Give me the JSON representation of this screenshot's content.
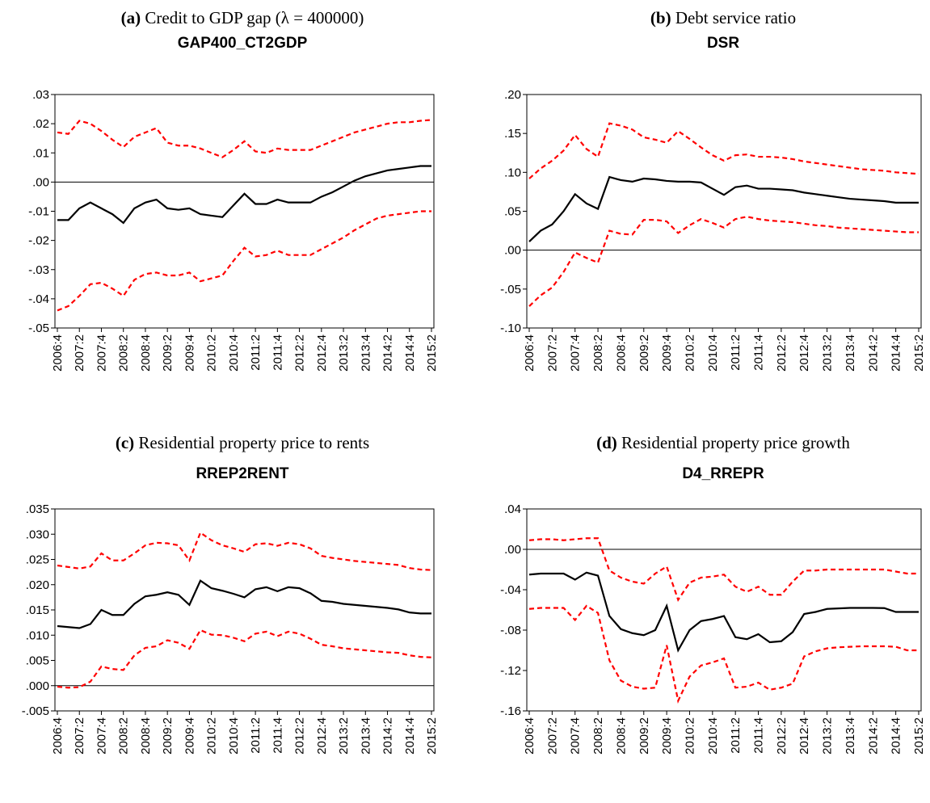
{
  "chart_data": [
    {
      "type": "line",
      "label": "(a)",
      "caption": "Credit to GDP gap (λ = 400000)",
      "title": "GAP400_CT2GDP",
      "categories": [
        "2006:4",
        null,
        "2007:2",
        null,
        "2007:4",
        null,
        "2008:2",
        null,
        "2008:4",
        null,
        "2009:2",
        null,
        "2009:4",
        null,
        "2010:2",
        null,
        "2010:4",
        null,
        "2011:2",
        null,
        "2011:4",
        null,
        "2012:2",
        null,
        "2012:4",
        null,
        "2013:2",
        null,
        "2013:4",
        null,
        "2014:2",
        null,
        "2014:4",
        null,
        "2015:2"
      ],
      "series": [
        {
          "color": "#000000",
          "dashed": false,
          "values": [
            -0.013,
            -0.013,
            -0.009,
            -0.007,
            -0.009,
            -0.011,
            -0.014,
            -0.009,
            -0.007,
            -0.006,
            -0.009,
            -0.0095,
            -0.009,
            -0.011,
            -0.0115,
            -0.012,
            -0.008,
            -0.004,
            -0.0075,
            -0.0075,
            -0.006,
            -0.007,
            -0.007,
            -0.007,
            -0.005,
            -0.0035,
            -0.0015,
            0.0005,
            0.002,
            0.003,
            0.004,
            0.0045,
            0.005,
            0.0055,
            0.0055
          ]
        },
        {
          "color": "#ff0000",
          "dashed": true,
          "values": [
            0.017,
            0.0165,
            0.021,
            0.02,
            0.0175,
            0.0145,
            0.012,
            0.0155,
            0.017,
            0.0185,
            0.0135,
            0.0125,
            0.0125,
            0.0115,
            0.01,
            0.0085,
            0.011,
            0.014,
            0.0105,
            0.01,
            0.0115,
            0.011,
            0.011,
            0.011,
            0.0125,
            0.014,
            0.0155,
            0.017,
            0.018,
            0.019,
            0.02,
            0.0205,
            0.0205,
            0.021,
            0.0213
          ]
        },
        {
          "color": "#ff0000",
          "dashed": true,
          "values": [
            -0.044,
            -0.0425,
            -0.039,
            -0.035,
            -0.0345,
            -0.0365,
            -0.039,
            -0.0335,
            -0.0315,
            -0.031,
            -0.032,
            -0.032,
            -0.031,
            -0.034,
            -0.033,
            -0.032,
            -0.027,
            -0.0225,
            -0.0255,
            -0.025,
            -0.0235,
            -0.025,
            -0.025,
            -0.025,
            -0.023,
            -0.021,
            -0.019,
            -0.0165,
            -0.0145,
            -0.0125,
            -0.0115,
            -0.011,
            -0.0105,
            -0.01,
            -0.01
          ]
        }
      ],
      "ylim": [
        -0.05,
        0.03
      ],
      "yticks": [
        {
          "value": -0.05,
          "label": "-.05"
        },
        {
          "value": -0.04,
          "label": "-.04"
        },
        {
          "value": -0.03,
          "label": "-.03"
        },
        {
          "value": -0.02,
          "label": "-.02"
        },
        {
          "value": -0.01,
          "label": "-.01"
        },
        {
          "value": 0,
          "label": ".00"
        },
        {
          "value": 0.01,
          "label": ".01"
        },
        {
          "value": 0.02,
          "label": ".02"
        },
        {
          "value": 0.03,
          "label": ".03"
        }
      ],
      "zero_line": true
    },
    {
      "type": "line",
      "label": "(b)",
      "caption": "Debt service ratio",
      "title": "DSR",
      "categories": [
        "2006:4",
        null,
        "2007:2",
        null,
        "2007:4",
        null,
        "2008:2",
        null,
        "2008:4",
        null,
        "2009:2",
        null,
        "2009:4",
        null,
        "2010:2",
        null,
        "2010:4",
        null,
        "2011:2",
        null,
        "2011:4",
        null,
        "2012:2",
        null,
        "2012:4",
        null,
        "2013:2",
        null,
        "2013:4",
        null,
        "2014:2",
        null,
        "2014:4",
        null,
        "2015:2"
      ],
      "series": [
        {
          "color": "#000000",
          "dashed": false,
          "values": [
            0.011,
            0.025,
            0.033,
            0.05,
            0.072,
            0.06,
            0.053,
            0.094,
            0.09,
            0.088,
            0.092,
            0.091,
            0.089,
            0.088,
            0.088,
            0.087,
            0.079,
            0.071,
            0.081,
            0.083,
            0.079,
            0.079,
            0.078,
            0.077,
            0.074,
            0.072,
            0.07,
            0.068,
            0.066,
            0.065,
            0.064,
            0.063,
            0.061,
            0.061,
            0.061
          ]
        },
        {
          "color": "#ff0000",
          "dashed": true,
          "values": [
            0.092,
            0.105,
            0.115,
            0.128,
            0.148,
            0.13,
            0.12,
            0.163,
            0.16,
            0.155,
            0.145,
            0.142,
            0.138,
            0.153,
            0.143,
            0.132,
            0.122,
            0.115,
            0.122,
            0.123,
            0.12,
            0.12,
            0.119,
            0.117,
            0.114,
            0.112,
            0.11,
            0.108,
            0.106,
            0.104,
            0.103,
            0.102,
            0.1,
            0.099,
            0.098
          ]
        },
        {
          "color": "#ff0000",
          "dashed": true,
          "values": [
            -0.072,
            -0.058,
            -0.048,
            -0.028,
            -0.003,
            -0.01,
            -0.016,
            0.025,
            0.021,
            0.02,
            0.039,
            0.039,
            0.037,
            0.022,
            0.032,
            0.04,
            0.035,
            0.029,
            0.04,
            0.043,
            0.04,
            0.038,
            0.037,
            0.036,
            0.034,
            0.032,
            0.031,
            0.029,
            0.028,
            0.027,
            0.026,
            0.025,
            0.024,
            0.023,
            0.023
          ]
        }
      ],
      "ylim": [
        -0.1,
        0.2
      ],
      "yticks": [
        {
          "value": -0.1,
          "label": "-.10"
        },
        {
          "value": -0.05,
          "label": "-.05"
        },
        {
          "value": 0,
          "label": ".00"
        },
        {
          "value": 0.05,
          "label": ".05"
        },
        {
          "value": 0.1,
          "label": ".10"
        },
        {
          "value": 0.15,
          "label": ".15"
        },
        {
          "value": 0.2,
          "label": ".20"
        }
      ],
      "zero_line": true
    },
    {
      "type": "line",
      "label": "(c)",
      "caption": "Residential property price to rents",
      "title": "RREP2RENT",
      "categories": [
        "2006:4",
        null,
        "2007:2",
        null,
        "2007:4",
        null,
        "2008:2",
        null,
        "2008:4",
        null,
        "2009:2",
        null,
        "2009:4",
        null,
        "2010:2",
        null,
        "2010:4",
        null,
        "2011:2",
        null,
        "2011:4",
        null,
        "2012:2",
        null,
        "2012:4",
        null,
        "2013:2",
        null,
        "2013:4",
        null,
        "2014:2",
        null,
        "2014:4",
        null,
        "2015:2"
      ],
      "series": [
        {
          "color": "#000000",
          "dashed": false,
          "values": [
            0.0118,
            0.0116,
            0.0114,
            0.0122,
            0.015,
            0.014,
            0.014,
            0.0162,
            0.0177,
            0.018,
            0.0185,
            0.018,
            0.016,
            0.0208,
            0.0193,
            0.0188,
            0.0182,
            0.0175,
            0.0191,
            0.0195,
            0.0187,
            0.0195,
            0.0193,
            0.0183,
            0.0168,
            0.0166,
            0.0162,
            0.016,
            0.0158,
            0.0156,
            0.0154,
            0.0151,
            0.0145,
            0.0143,
            0.0143
          ]
        },
        {
          "color": "#ff0000",
          "dashed": true,
          "values": [
            0.0238,
            0.0235,
            0.0232,
            0.0236,
            0.0262,
            0.0248,
            0.0248,
            0.0262,
            0.0278,
            0.0283,
            0.0282,
            0.0278,
            0.0248,
            0.0303,
            0.0288,
            0.0278,
            0.0272,
            0.0265,
            0.028,
            0.0282,
            0.0277,
            0.0283,
            0.028,
            0.0272,
            0.0257,
            0.0253,
            0.025,
            0.0247,
            0.0245,
            0.0243,
            0.0241,
            0.0239,
            0.0233,
            0.023,
            0.0229
          ]
        },
        {
          "color": "#ff0000",
          "dashed": true,
          "values": [
            -0.0002,
            -0.0004,
            -0.0003,
            0.0008,
            0.0038,
            0.0033,
            0.0031,
            0.006,
            0.0075,
            0.0078,
            0.009,
            0.0085,
            0.0073,
            0.011,
            0.0101,
            0.01,
            0.0095,
            0.0088,
            0.0103,
            0.0107,
            0.0098,
            0.0107,
            0.0103,
            0.0093,
            0.0081,
            0.0078,
            0.0074,
            0.0072,
            0.007,
            0.0068,
            0.0066,
            0.0065,
            0.006,
            0.0057,
            0.0056
          ]
        }
      ],
      "ylim": [
        -0.005,
        0.035
      ],
      "yticks": [
        {
          "value": -0.005,
          "label": "-.005"
        },
        {
          "value": 0,
          "label": ".000"
        },
        {
          "value": 0.005,
          "label": ".005"
        },
        {
          "value": 0.01,
          "label": ".010"
        },
        {
          "value": 0.015,
          "label": ".015"
        },
        {
          "value": 0.02,
          "label": ".020"
        },
        {
          "value": 0.025,
          "label": ".025"
        },
        {
          "value": 0.03,
          "label": ".030"
        },
        {
          "value": 0.035,
          "label": ".035"
        }
      ],
      "zero_line": true
    },
    {
      "type": "line",
      "label": "(d)",
      "caption": "Residential property price growth",
      "title": "D4_RREPR",
      "categories": [
        "2006:4",
        null,
        "2007:2",
        null,
        "2007:4",
        null,
        "2008:2",
        null,
        "2008:4",
        null,
        "2009:2",
        null,
        "2009:4",
        null,
        "2010:2",
        null,
        "2010:4",
        null,
        "2011:2",
        null,
        "2011:4",
        null,
        "2012:2",
        null,
        "2012:4",
        null,
        "2013:2",
        null,
        "2013:4",
        null,
        "2014:2",
        null,
        "2014:4",
        null,
        "2015:2"
      ],
      "series": [
        {
          "color": "#000000",
          "dashed": false,
          "values": [
            -0.025,
            -0.024,
            -0.024,
            -0.024,
            -0.03,
            -0.023,
            -0.026,
            -0.066,
            -0.079,
            -0.083,
            -0.085,
            -0.08,
            -0.056,
            -0.1,
            -0.08,
            -0.071,
            -0.069,
            -0.066,
            -0.087,
            -0.089,
            -0.084,
            -0.092,
            -0.091,
            -0.082,
            -0.064,
            -0.062,
            -0.059,
            -0.0585,
            -0.058,
            -0.058,
            -0.058,
            -0.0582,
            -0.062,
            -0.062,
            -0.062
          ]
        },
        {
          "color": "#ff0000",
          "dashed": true,
          "values": [
            0.009,
            0.01,
            0.01,
            0.009,
            0.01,
            0.011,
            0.011,
            -0.021,
            -0.028,
            -0.032,
            -0.034,
            -0.024,
            -0.017,
            -0.05,
            -0.033,
            -0.028,
            -0.027,
            -0.025,
            -0.037,
            -0.042,
            -0.037,
            -0.045,
            -0.045,
            -0.032,
            -0.021,
            -0.021,
            -0.02,
            -0.02,
            -0.02,
            -0.02,
            -0.02,
            -0.02,
            -0.022,
            -0.024,
            -0.024
          ]
        },
        {
          "color": "#ff0000",
          "dashed": true,
          "values": [
            -0.059,
            -0.058,
            -0.058,
            -0.058,
            -0.07,
            -0.056,
            -0.063,
            -0.11,
            -0.13,
            -0.136,
            -0.138,
            -0.137,
            -0.095,
            -0.15,
            -0.126,
            -0.115,
            -0.112,
            -0.108,
            -0.137,
            -0.136,
            -0.132,
            -0.139,
            -0.137,
            -0.133,
            -0.106,
            -0.101,
            -0.098,
            -0.097,
            -0.0965,
            -0.096,
            -0.096,
            -0.096,
            -0.0965,
            -0.1,
            -0.1
          ]
        }
      ],
      "ylim": [
        -0.16,
        0.04
      ],
      "yticks": [
        {
          "value": -0.16,
          "label": "-.16"
        },
        {
          "value": -0.12,
          "label": "-.12"
        },
        {
          "value": -0.08,
          "label": "-.08"
        },
        {
          "value": -0.04,
          "label": "-.04"
        },
        {
          "value": 0,
          "label": ".00"
        },
        {
          "value": 0.04,
          "label": ".04"
        }
      ],
      "zero_line": true
    }
  ]
}
